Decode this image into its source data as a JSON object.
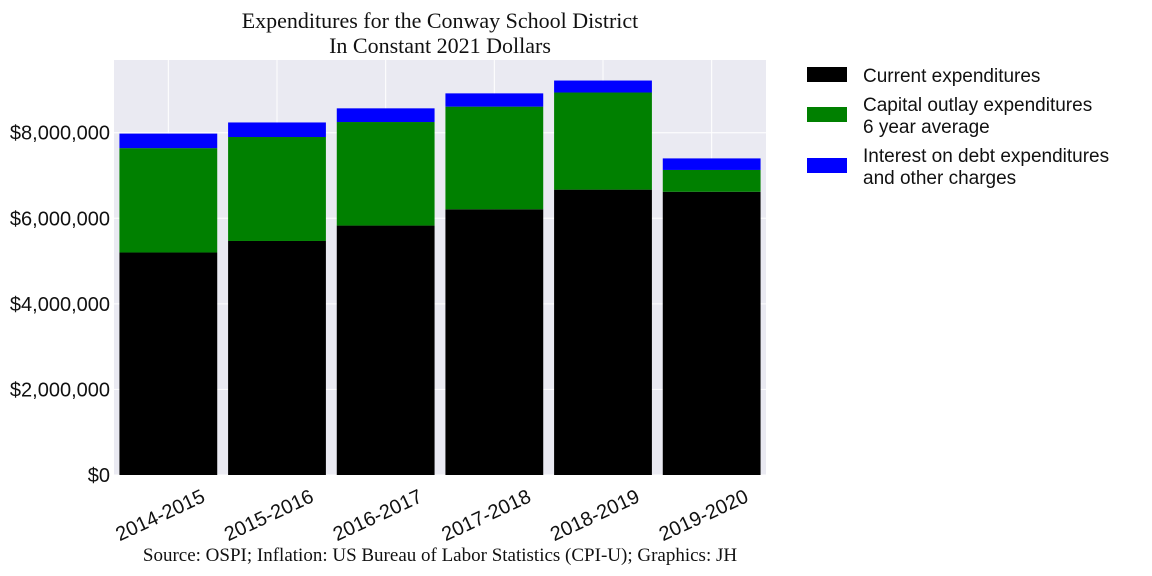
{
  "chart_data": {
    "type": "bar",
    "stacked": true,
    "title": "Expenditures for the Conway School District",
    "subtitle": "In Constant 2021 Dollars",
    "source": "Source: OSPI; Inflation: US Bureau of Labor Statistics (CPI-U); Graphics: JH",
    "categories": [
      "2014-2015",
      "2015-2016",
      "2016-2017",
      "2017-2018",
      "2018-2019",
      "2019-2020"
    ],
    "series": [
      {
        "name": "Current expenditures",
        "color": "#000000",
        "values": [
          5200000,
          5470000,
          5830000,
          6210000,
          6670000,
          6620000
        ]
      },
      {
        "name": "Capital outlay expenditures\n6 year average",
        "color": "#008000",
        "values": [
          2440000,
          2430000,
          2420000,
          2400000,
          2270000,
          510000
        ]
      },
      {
        "name": "Interest on debt expenditures\nand other charges",
        "color": "#0000ff",
        "values": [
          340000,
          340000,
          320000,
          310000,
          280000,
          270000
        ]
      }
    ],
    "yticks": [
      "$0",
      "$2,000,000",
      "$4,000,000",
      "$6,000,000",
      "$8,000,000"
    ],
    "ytick_values": [
      0,
      2000000,
      4000000,
      6000000,
      8000000
    ],
    "ylim": [
      0,
      9700000
    ],
    "grid": true,
    "plot_background": "#eaeaf2",
    "legend_position": "outside-right"
  }
}
